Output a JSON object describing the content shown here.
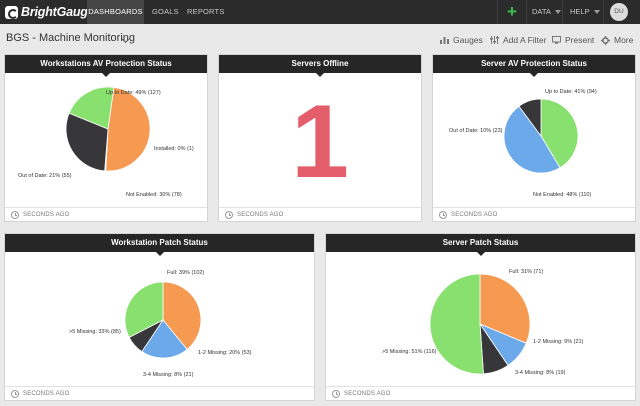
{
  "brand": {
    "name": "BrightGauge"
  },
  "nav": {
    "tabs": [
      {
        "label": "DASHBOARDS",
        "active": true
      },
      {
        "label": "GOALS",
        "active": false
      },
      {
        "label": "REPORTS",
        "active": false
      }
    ],
    "add_icon": "plus-icon",
    "menus": [
      {
        "label": "DATA"
      },
      {
        "label": "HELP"
      }
    ],
    "avatar_initials": "DU"
  },
  "toolbar": {
    "title": "BGS - Machine Monitoring",
    "gauges": "Gauges",
    "add_filter": "Add A Filter",
    "present": "Present",
    "more": "More"
  },
  "colors": {
    "accent_green": "#3ec04f",
    "number_red": "#e35d6a",
    "orange": "#f79a51",
    "green": "#88e06e",
    "dark": "#37373a",
    "blue": "#6ba9ea"
  },
  "cards": [
    {
      "title": "Workstations AV Protection Status",
      "updated": "SECONDS AGO",
      "chart_data": {
        "type": "pie",
        "title": "Workstations AV Protection Status",
        "slices": [
          {
            "label": "Up to Date: 49% (127)",
            "value": 127,
            "color": "#f79a51"
          },
          {
            "label": "Installed: 0% (1)",
            "value": 1,
            "color": "#6ba9ea"
          },
          {
            "label": "Not Enabled: 30% (78)",
            "value": 78,
            "color": "#37373a"
          },
          {
            "label": "Out of Date: 21% (55)",
            "value": 55,
            "color": "#88e06e"
          }
        ]
      }
    },
    {
      "title": "Servers Offline",
      "updated": "SECONDS AGO",
      "value": "1"
    },
    {
      "title": "Server AV Protection Status",
      "updated": "SECONDS AGO",
      "chart_data": {
        "type": "pie",
        "title": "Server AV Protection Status",
        "slices": [
          {
            "label": "Up to Date: 41% (94)",
            "value": 94,
            "color": "#88e06e"
          },
          {
            "label": "Not Enabled: 48% (110)",
            "value": 110,
            "color": "#6ba9ea"
          },
          {
            "label": "Out of Date: 10% (23)",
            "value": 23,
            "color": "#37373a"
          }
        ]
      }
    },
    {
      "title": "Workstation Patch Status",
      "updated": "SECONDS AGO",
      "chart_data": {
        "type": "pie",
        "title": "Workstation Patch Status",
        "slices": [
          {
            "label": "Full: 39% (102)",
            "value": 102,
            "color": "#f79a51"
          },
          {
            "label": "1-2 Missing: 20% (53)",
            "value": 53,
            "color": "#6ba9ea"
          },
          {
            "label": "3-4 Missing: 8% (21)",
            "value": 21,
            "color": "#37373a"
          },
          {
            "label": ">5 Missing: 33% (85)",
            "value": 85,
            "color": "#88e06e"
          }
        ]
      }
    },
    {
      "title": "Server Patch Status",
      "updated": "SECONDS AGO",
      "chart_data": {
        "type": "pie",
        "title": "Server Patch Status",
        "slices": [
          {
            "label": "Full: 31% (71)",
            "value": 71,
            "color": "#f79a51"
          },
          {
            "label": "1-2 Missing: 9% (21)",
            "value": 21,
            "color": "#6ba9ea"
          },
          {
            "label": "3-4 Missing: 8% (19)",
            "value": 19,
            "color": "#37373a"
          },
          {
            "label": ">5 Missing: 51% (116)",
            "value": 116,
            "color": "#88e06e"
          }
        ]
      }
    }
  ]
}
